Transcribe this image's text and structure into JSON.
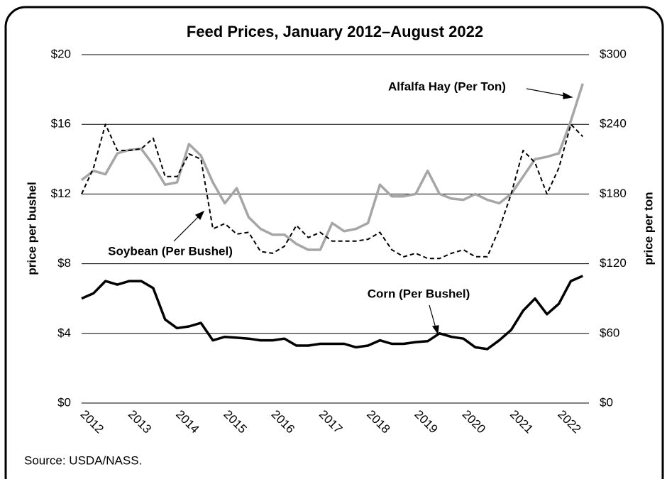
{
  "chart_data": {
    "type": "line",
    "title": "Feed Prices, January 2012–August 2022",
    "ylabel": "price per bushel",
    "y2label": "price per ton",
    "source": "Source: USDA/NASS.",
    "x": [
      2012,
      2012.25,
      2012.5,
      2012.75,
      2013,
      2013.25,
      2013.5,
      2013.75,
      2014,
      2014.25,
      2014.5,
      2014.75,
      2015,
      2015.25,
      2015.5,
      2015.75,
      2016,
      2016.25,
      2016.5,
      2016.75,
      2017,
      2017.25,
      2017.5,
      2017.75,
      2018,
      2018.25,
      2018.5,
      2018.75,
      2019,
      2019.25,
      2019.5,
      2019.75,
      2020,
      2020.25,
      2020.5,
      2020.75,
      2021,
      2021.25,
      2021.5,
      2021.75,
      2022,
      2022.25,
      2022.5
    ],
    "xlim": [
      2012,
      2022.6
    ],
    "xticks": [
      2012,
      2013,
      2014,
      2015,
      2016,
      2017,
      2018,
      2019,
      2020,
      2021,
      2022
    ],
    "ylim": [
      0,
      20
    ],
    "yticks": [
      {
        "value": 0,
        "label": "$0"
      },
      {
        "value": 4,
        "label": "$4"
      },
      {
        "value": 8,
        "label": "$8"
      },
      {
        "value": 12,
        "label": "$12"
      },
      {
        "value": 16,
        "label": "$16"
      },
      {
        "value": 20,
        "label": "$20"
      }
    ],
    "y2lim": [
      0,
      300
    ],
    "y2ticks": [
      {
        "value": 0,
        "label": "$0"
      },
      {
        "value": 60,
        "label": "$60"
      },
      {
        "value": 120,
        "label": "$120"
      },
      {
        "value": 180,
        "label": "$180"
      },
      {
        "value": 240,
        "label": "$240"
      },
      {
        "value": 300,
        "label": "$300"
      }
    ],
    "grid": true,
    "series": [
      {
        "name": "Alfalfa Hay (Per Ton)",
        "color": "#a6a6a6",
        "axis": "y2",
        "line_style": "solid",
        "values": [
          192,
          200,
          197,
          215,
          218,
          219,
          205,
          188,
          190,
          223,
          213,
          190,
          172,
          185,
          160,
          150,
          145,
          145,
          137,
          132,
          132,
          155,
          148,
          150,
          155,
          188,
          178,
          178,
          180,
          200,
          180,
          176,
          175,
          180,
          175,
          172,
          180,
          195,
          210,
          212,
          215,
          243,
          275
        ]
      },
      {
        "name": "Soybean (Per Bushel)",
        "color": "#000000",
        "line_style": "dashed",
        "values": [
          12.0,
          13.5,
          16.0,
          14.5,
          14.5,
          14.6,
          15.2,
          13.0,
          13.0,
          14.3,
          14.0,
          10.0,
          10.3,
          9.7,
          9.8,
          8.7,
          8.6,
          9.0,
          10.2,
          9.5,
          9.8,
          9.3,
          9.3,
          9.3,
          9.4,
          9.8,
          8.8,
          8.4,
          8.6,
          8.3,
          8.3,
          8.6,
          8.8,
          8.4,
          8.4,
          10.0,
          12.0,
          14.5,
          13.8,
          12.0,
          13.5,
          16.0,
          15.3
        ]
      },
      {
        "name": "Corn (Per Bushel)",
        "color": "#000000",
        "line_style": "solid",
        "values": [
          6.0,
          6.3,
          7.0,
          6.8,
          7.0,
          7.0,
          6.6,
          4.8,
          4.3,
          4.4,
          4.6,
          3.6,
          3.8,
          3.75,
          3.7,
          3.6,
          3.6,
          3.7,
          3.3,
          3.3,
          3.4,
          3.4,
          3.4,
          3.2,
          3.3,
          3.6,
          3.4,
          3.4,
          3.5,
          3.55,
          4.0,
          3.8,
          3.7,
          3.2,
          3.1,
          3.6,
          4.2,
          5.3,
          6.0,
          5.1,
          5.7,
          7.0,
          7.3
        ]
      }
    ]
  }
}
